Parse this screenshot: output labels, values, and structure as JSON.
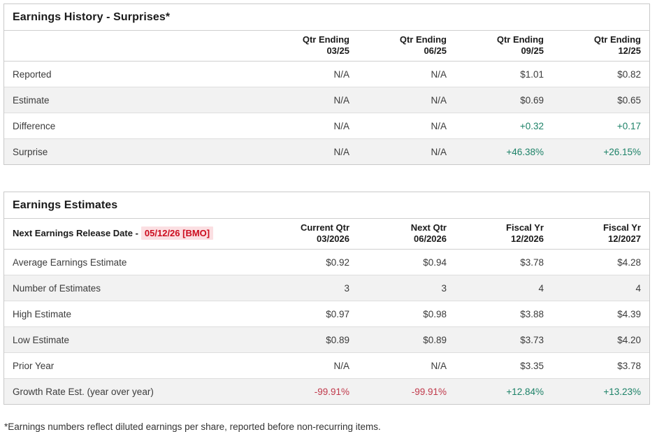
{
  "colors": {
    "positive": "#1d8268",
    "negative": "#c0394b",
    "release_date_text": "#cc0c1e",
    "release_date_bg": "#fbdfe2"
  },
  "earnings_history": {
    "title": "Earnings History - Surprises*",
    "columns": [
      {
        "line1": "Qtr Ending",
        "line2": "03/25"
      },
      {
        "line1": "Qtr Ending",
        "line2": "06/25"
      },
      {
        "line1": "Qtr Ending",
        "line2": "09/25"
      },
      {
        "line1": "Qtr Ending",
        "line2": "12/25"
      }
    ],
    "rows": [
      {
        "label": "Reported",
        "values": [
          {
            "text": "N/A"
          },
          {
            "text": "N/A"
          },
          {
            "text": "$1.01"
          },
          {
            "text": "$0.82"
          }
        ]
      },
      {
        "label": "Estimate",
        "values": [
          {
            "text": "N/A"
          },
          {
            "text": "N/A"
          },
          {
            "text": "$0.69"
          },
          {
            "text": "$0.65"
          }
        ]
      },
      {
        "label": "Difference",
        "values": [
          {
            "text": "N/A"
          },
          {
            "text": "N/A"
          },
          {
            "text": "+0.32",
            "color": "positive"
          },
          {
            "text": "+0.17",
            "color": "positive"
          }
        ]
      },
      {
        "label": "Surprise",
        "values": [
          {
            "text": "N/A"
          },
          {
            "text": "N/A"
          },
          {
            "text": "+46.38%",
            "color": "positive"
          },
          {
            "text": "+26.15%",
            "color": "positive"
          }
        ]
      }
    ]
  },
  "earnings_estimates": {
    "title": "Earnings Estimates",
    "release_date_label": "Next Earnings Release Date -",
    "release_date_value": "05/12/26 [BMO]",
    "columns": [
      {
        "line1": "Current Qtr",
        "line2": "03/2026"
      },
      {
        "line1": "Next Qtr",
        "line2": "06/2026"
      },
      {
        "line1": "Fiscal Yr",
        "line2": "12/2026"
      },
      {
        "line1": "Fiscal Yr",
        "line2": "12/2027"
      }
    ],
    "rows": [
      {
        "label": "Average Earnings Estimate",
        "values": [
          {
            "text": "$0.92"
          },
          {
            "text": "$0.94"
          },
          {
            "text": "$3.78"
          },
          {
            "text": "$4.28"
          }
        ]
      },
      {
        "label": "Number of Estimates",
        "values": [
          {
            "text": "3"
          },
          {
            "text": "3"
          },
          {
            "text": "4"
          },
          {
            "text": "4"
          }
        ]
      },
      {
        "label": "High Estimate",
        "values": [
          {
            "text": "$0.97"
          },
          {
            "text": "$0.98"
          },
          {
            "text": "$3.88"
          },
          {
            "text": "$4.39"
          }
        ]
      },
      {
        "label": "Low Estimate",
        "values": [
          {
            "text": "$0.89"
          },
          {
            "text": "$0.89"
          },
          {
            "text": "$3.73"
          },
          {
            "text": "$4.20"
          }
        ]
      },
      {
        "label": "Prior Year",
        "values": [
          {
            "text": "N/A"
          },
          {
            "text": "N/A"
          },
          {
            "text": "$3.35"
          },
          {
            "text": "$3.78"
          }
        ]
      },
      {
        "label": "Growth Rate Est. (year over year)",
        "values": [
          {
            "text": "-99.91%",
            "color": "negative"
          },
          {
            "text": "-99.91%",
            "color": "negative"
          },
          {
            "text": "+12.84%",
            "color": "positive"
          },
          {
            "text": "+13.23%",
            "color": "positive"
          }
        ]
      }
    ]
  },
  "footnote": "*Earnings numbers reflect diluted earnings per share, reported before non-recurring items."
}
